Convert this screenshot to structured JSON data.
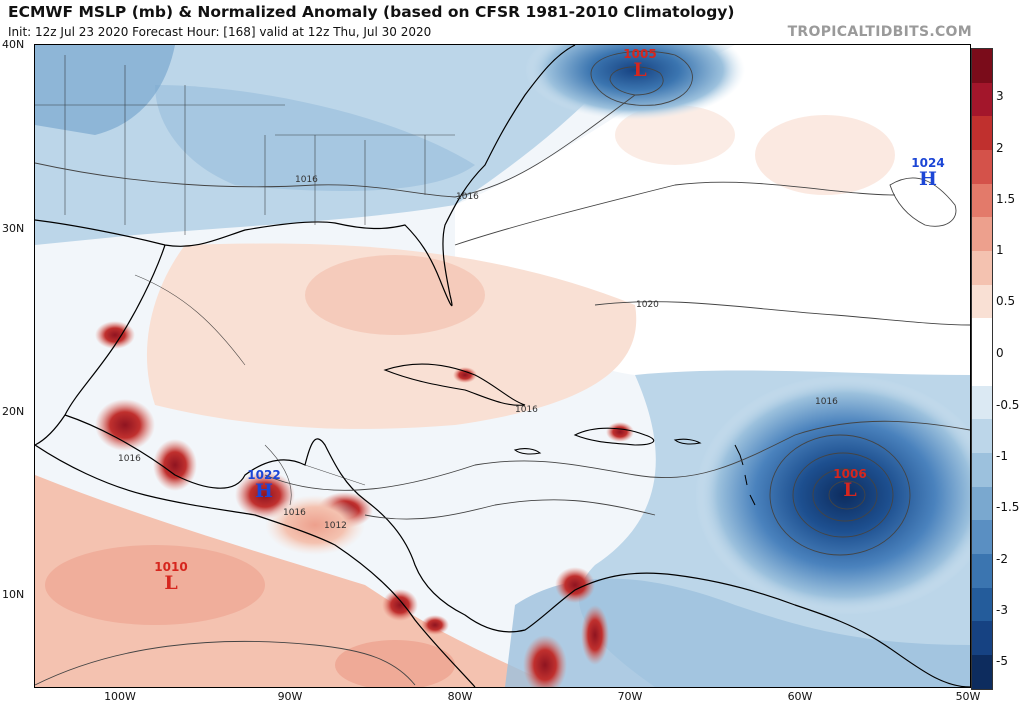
{
  "header": {
    "title": "ECMWF MSLP (mb) & Normalized Anomaly (based on CFSR 1981-2010 Climatology)",
    "subtitle": "Init: 12z Jul 23 2020   Forecast Hour: [168]   valid at 12z Thu, Jul 30 2020",
    "credit": "TROPICALTIDBITS.COM"
  },
  "axes": {
    "lat_labels": [
      "40N",
      "30N",
      "20N",
      "10N"
    ],
    "lon_labels": [
      "100W",
      "90W",
      "80W",
      "70W",
      "60W",
      "50W"
    ]
  },
  "colorbar": {
    "labels": [
      "3",
      "2",
      "1.5",
      "1",
      "0.5",
      "0",
      "-0.5",
      "-1",
      "-1.5",
      "-2",
      "-3",
      "-5"
    ],
    "colors": [
      "#7a0c1a",
      "#a3162b",
      "#c0302e",
      "#d4524a",
      "#e37a6a",
      "#eda08d",
      "#f4c2b0",
      "#f9e0d4",
      "#ffffff",
      "#ffffff",
      "#dbe9f3",
      "#bcd6e9",
      "#9cc1dd",
      "#7aa8cf",
      "#5a8fc2",
      "#3b75b0",
      "#245c9b",
      "#164282",
      "#0d2c5e"
    ]
  },
  "isobar_labels": [
    "1016",
    "1016",
    "1020",
    "1016",
    "1016",
    "1016",
    "1012",
    "1016"
  ],
  "systems": [
    {
      "type": "L",
      "pressure": "1005"
    },
    {
      "type": "H",
      "pressure": "1024"
    },
    {
      "type": "L",
      "pressure": "1006"
    },
    {
      "type": "H",
      "pressure": "1022"
    },
    {
      "type": "L",
      "pressure": "1010"
    }
  ]
}
